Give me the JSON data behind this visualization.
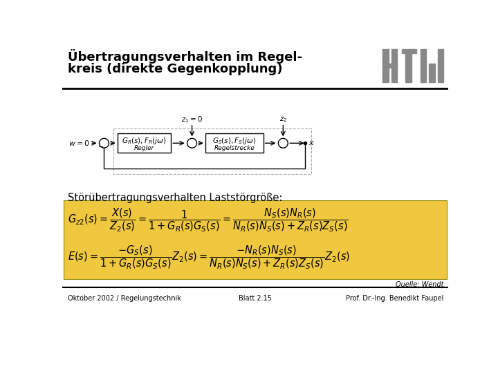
{
  "title_line1": "Übertragungsverhalten im Regel-",
  "title_line2": "kreis (direkte Gegenkopplung)",
  "title_fontsize": 13,
  "section_label": "Störübertragungsverhalten Laststörgröße:",
  "section_fontsize": 10.5,
  "formula1": "$G_{z2}(s) = \\dfrac{X(s)}{Z_2(s)} = \\dfrac{1}{1+G_R(s)G_S(s)} = \\dfrac{N_S(s)N_R(s)}{N_R(s)N_S(s)+Z_R(s)Z_S(s)}$",
  "formula2": "$E(s) = \\dfrac{-G_S(s)}{1+G_R(s)G_S(s)}Z_2(s) = \\dfrac{-N_R(s)N_S(s)}{N_R(s)N_S(s)+Z_R(s)Z_S(s)}Z_2(s)$",
  "formula_fontsize": 10.5,
  "formula_bg": "#F0C840",
  "footer_left": "Oktober 2002 / Regelungstechnik",
  "footer_center": "Blatt 2.15",
  "footer_right": "Prof. Dr.-Ing. Benedikt Faupel",
  "footer_fontsize": 7,
  "source_text": "Quelle: Wendt",
  "htw_color": "#888888",
  "bg_color": "#ffffff",
  "line_color": "#000000"
}
